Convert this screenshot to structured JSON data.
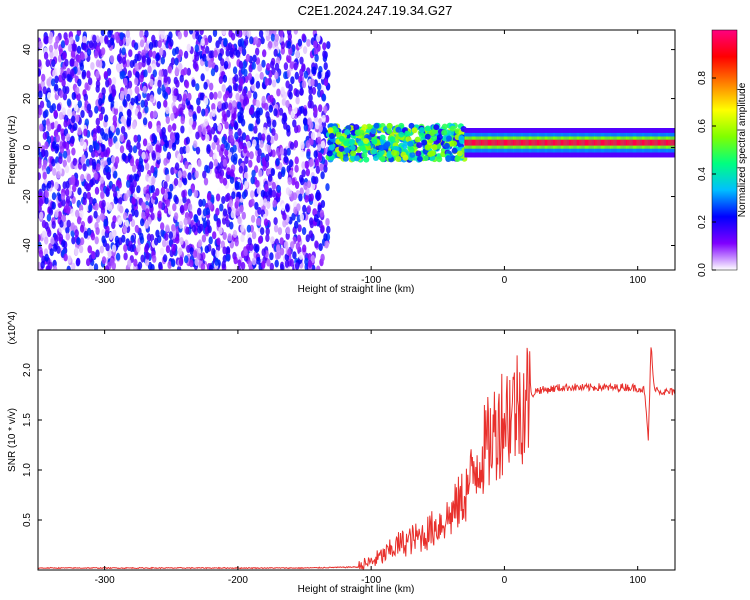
{
  "figure": {
    "title": "C2E1.2024.247.19.34.G27"
  },
  "chart_data": [
    {
      "type": "heatmap",
      "title": "C2E1.2024.247.19.34.G27",
      "xlabel": "Height of straight line (km)",
      "ylabel": "Frequency (Hz)",
      "xlim": [
        -350,
        128
      ],
      "ylim": [
        -50,
        48
      ],
      "xticks": [
        -300,
        -200,
        -100,
        0,
        100
      ],
      "yticks": [
        -40,
        -20,
        0,
        20,
        40
      ],
      "colorbar": {
        "label": "Normalized spectral amplitude",
        "range": [
          0,
          1
        ],
        "ticks": [
          0.0,
          0.2,
          0.4,
          0.6,
          0.8
        ],
        "tick_labels": [
          "0.0",
          "0.2",
          "0.4",
          "0.6",
          "0.8"
        ],
        "colors": [
          "#ffffff",
          "#7f00ff",
          "#0000ff",
          "#00bfff",
          "#00ff80",
          "#80ff00",
          "#ffff00",
          "#ff8000",
          "#ff0000",
          "#ff0080"
        ]
      },
      "regions": [
        {
          "description_type": "noise",
          "x": [
            -350,
            -132
          ],
          "y": [
            -50,
            48
          ],
          "level": 0.2
        },
        {
          "description_type": "transition",
          "x": [
            -132,
            -30
          ],
          "y_center": 2,
          "level": 0.45
        },
        {
          "description_type": "tone",
          "x": [
            -30,
            128
          ],
          "y_center": 2,
          "level": 0.95
        }
      ],
      "grid": false
    },
    {
      "type": "line",
      "xlabel": "Height of straight line (km)",
      "ylabel": "SNR (10 * v/v)",
      "y_multiplier": "(x10^4)",
      "xlim": [
        -350,
        128
      ],
      "ylim": [
        0,
        2.4
      ],
      "xticks": [
        -300,
        -200,
        -100,
        0,
        100
      ],
      "yticks": [
        0.5,
        1.0,
        1.5,
        2.0
      ],
      "ytick_labels": [
        "0.5",
        "1.0",
        "1.5",
        "2.0"
      ],
      "series": [
        {
          "color": "#e8302c",
          "x": [
            -350,
            -300,
            -250,
            -200,
            -150,
            -110,
            -100,
            -90,
            -80,
            -70,
            -60,
            -50,
            -40,
            -30,
            -25,
            -20,
            -15,
            -10,
            -5,
            0,
            5,
            10,
            15,
            20,
            25,
            30,
            40,
            50,
            60,
            70,
            80,
            90,
            100,
            105,
            108,
            110,
            112,
            115,
            120,
            128
          ],
          "y": [
            0.02,
            0.02,
            0.02,
            0.02,
            0.02,
            0.03,
            0.08,
            0.15,
            0.25,
            0.3,
            0.35,
            0.45,
            0.55,
            0.75,
            0.9,
            1.1,
            1.2,
            1.3,
            1.45,
            1.55,
            1.6,
            1.65,
            1.7,
            1.75,
            1.8,
            1.8,
            1.82,
            1.83,
            1.82,
            1.83,
            1.82,
            1.83,
            1.82,
            1.8,
            1.3,
            2.25,
            1.85,
            1.8,
            1.78,
            1.78
          ]
        }
      ],
      "grid": false
    }
  ]
}
